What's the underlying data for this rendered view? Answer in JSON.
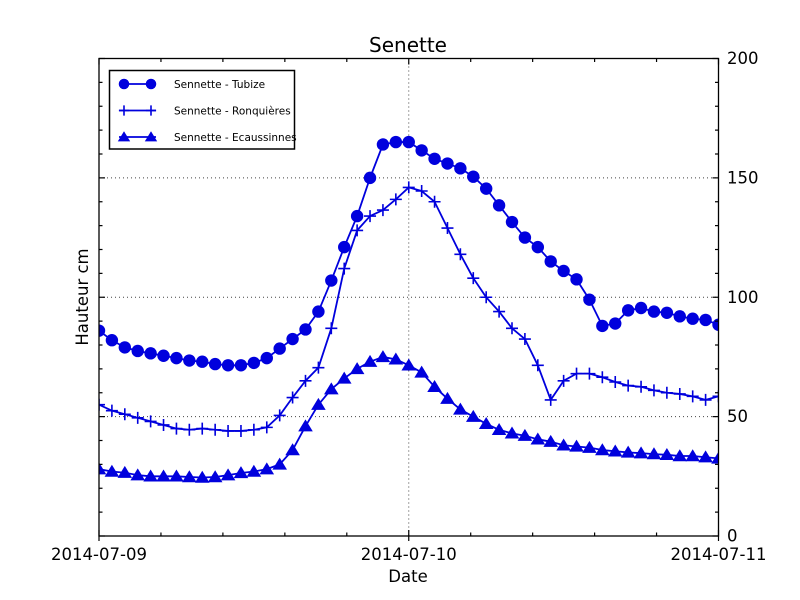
{
  "title": "Senette",
  "xlabel": "Date",
  "ylabel": "Hauteur cm",
  "colors": {
    "series_blue": "#0000dd",
    "grid": "#444444",
    "axis": "#000000",
    "background": "#ffffff"
  },
  "chart_data": {
    "type": "line",
    "title": "Senette",
    "xlabel": "Date",
    "ylabel": "Hauteur cm",
    "x_unit": "hours since 2014-07-09 00:00",
    "x_range": [
      0,
      48
    ],
    "ylim": [
      0,
      200
    ],
    "x_major_ticks": [
      {
        "pos": 0,
        "label": "2014-07-09"
      },
      {
        "pos": 24,
        "label": "2014-07-10"
      },
      {
        "pos": 48,
        "label": "2014-07-11"
      }
    ],
    "x_minor_step": 4.8,
    "y_major_ticks": [
      0,
      50,
      100,
      150,
      200
    ],
    "y_minor_step": 10,
    "grid": {
      "vertical": [
        24
      ],
      "horizontal": [
        50,
        100,
        150
      ],
      "style": "dotted"
    },
    "legend_position": "upper-left",
    "series": [
      {
        "name": "Sennette - Tubize",
        "marker": "circle",
        "color": "#0000dd",
        "values": [
          86,
          82,
          79,
          77.5,
          76.5,
          75.5,
          74.5,
          73.5,
          73,
          72,
          71.5,
          71.5,
          72.5,
          74.5,
          78.5,
          82.5,
          86.5,
          94,
          107,
          121,
          134,
          150,
          164,
          165,
          165,
          161.5,
          158,
          156,
          154,
          150.5,
          145.5,
          138.5,
          131.5,
          125,
          121,
          115,
          111,
          107.5,
          99,
          88,
          89,
          94.5,
          95.5,
          94,
          93.5,
          92,
          91,
          90.5,
          88.5
        ]
      },
      {
        "name": "Sennette - Ronquières",
        "marker": "plus",
        "color": "#0000dd",
        "values": [
          55,
          52.5,
          51,
          49.5,
          48,
          46.5,
          45,
          44.5,
          45,
          44.5,
          44,
          44,
          44.5,
          45.5,
          50.5,
          58,
          65,
          70.5,
          87,
          112,
          128,
          134,
          136.5,
          141,
          146,
          144.5,
          140,
          129,
          118,
          108,
          100,
          94,
          87,
          82.5,
          71.5,
          57,
          65,
          68,
          68,
          66.5,
          64.5,
          63,
          62.5,
          61,
          60,
          59.5,
          58.5,
          57,
          58.5
        ]
      },
      {
        "name": "Sennette - Ecaussinnes",
        "marker": "triangle-up",
        "color": "#0000dd",
        "values": [
          28,
          27,
          26.5,
          25.5,
          25,
          25,
          25,
          24.7,
          24.5,
          24.7,
          25.5,
          26.4,
          27,
          28,
          30,
          36,
          46,
          55,
          61.5,
          66,
          70,
          73,
          75,
          74,
          71.5,
          68.5,
          62.5,
          57.5,
          53,
          50,
          47,
          44.5,
          43,
          42,
          40.5,
          39.5,
          38,
          37.5,
          37,
          36,
          35.5,
          35,
          34.7,
          34.3,
          34,
          33.5,
          33.5,
          33,
          32.5
        ]
      }
    ]
  }
}
